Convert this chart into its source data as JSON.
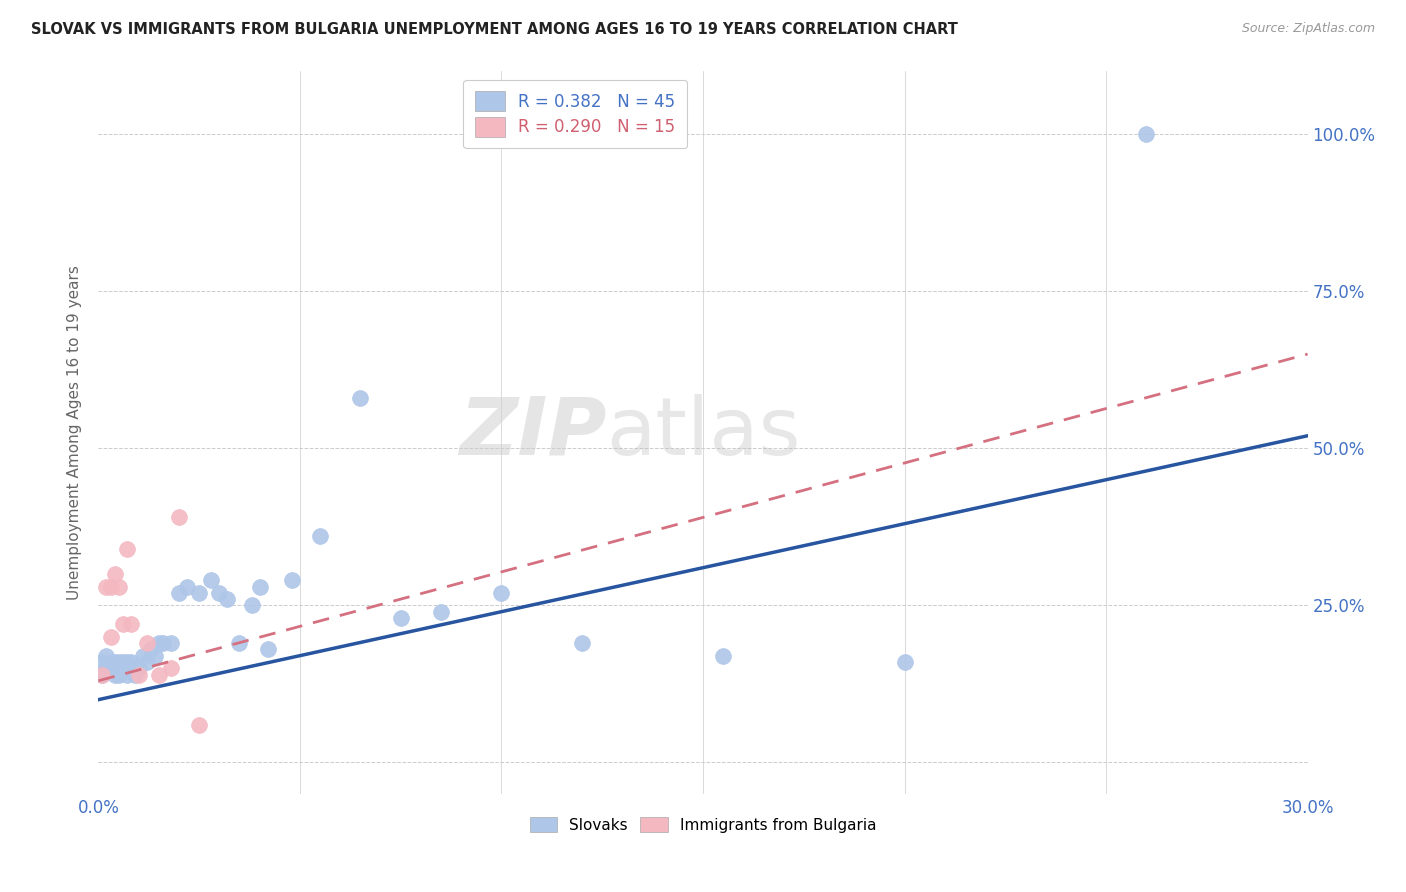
{
  "title": "SLOVAK VS IMMIGRANTS FROM BULGARIA UNEMPLOYMENT AMONG AGES 16 TO 19 YEARS CORRELATION CHART",
  "source": "Source: ZipAtlas.com",
  "ylabel": "Unemployment Among Ages 16 to 19 years",
  "xlim": [
    0.0,
    0.3
  ],
  "ylim": [
    -0.05,
    1.1
  ],
  "xticks": [
    0.0,
    0.05,
    0.1,
    0.15,
    0.2,
    0.25,
    0.3
  ],
  "xticklabels": [
    "0.0%",
    "",
    "",
    "",
    "",
    "",
    "30.0%"
  ],
  "yticks": [
    0.0,
    0.25,
    0.5,
    0.75,
    1.0
  ],
  "yticklabels": [
    "",
    "25.0%",
    "50.0%",
    "75.0%",
    "100.0%"
  ],
  "legend_entries": [
    {
      "label": "R = 0.382   N = 45",
      "color": "#aec6e8"
    },
    {
      "label": "R = 0.290   N = 15",
      "color": "#f4b8c1"
    }
  ],
  "bottom_legend": [
    "Slovaks",
    "Immigrants from Bulgaria"
  ],
  "slovak_color": "#aec6e8",
  "bulgaria_color": "#f4b8c1",
  "slovak_line_color": "#2855a0",
  "bulgaria_line_color": "#d47080",
  "watermark": "ZIPatlas",
  "slovak_x": [
    0.001,
    0.001,
    0.002,
    0.002,
    0.003,
    0.003,
    0.004,
    0.004,
    0.005,
    0.005,
    0.006,
    0.006,
    0.007,
    0.007,
    0.008,
    0.008,
    0.009,
    0.01,
    0.011,
    0.012,
    0.013,
    0.014,
    0.015,
    0.016,
    0.018,
    0.02,
    0.022,
    0.025,
    0.028,
    0.03,
    0.032,
    0.035,
    0.038,
    0.04,
    0.042,
    0.048,
    0.055,
    0.065,
    0.075,
    0.085,
    0.1,
    0.12,
    0.155,
    0.2,
    0.26
  ],
  "slovak_y": [
    0.14,
    0.16,
    0.15,
    0.17,
    0.15,
    0.16,
    0.14,
    0.16,
    0.14,
    0.16,
    0.15,
    0.16,
    0.14,
    0.16,
    0.15,
    0.16,
    0.14,
    0.15,
    0.17,
    0.16,
    0.18,
    0.17,
    0.19,
    0.19,
    0.19,
    0.27,
    0.28,
    0.27,
    0.29,
    0.27,
    0.26,
    0.19,
    0.25,
    0.28,
    0.18,
    0.29,
    0.36,
    0.58,
    0.23,
    0.24,
    0.27,
    0.19,
    0.17,
    0.16,
    1.0
  ],
  "bulgaria_x": [
    0.001,
    0.002,
    0.003,
    0.003,
    0.004,
    0.005,
    0.006,
    0.007,
    0.008,
    0.01,
    0.012,
    0.015,
    0.018,
    0.02,
    0.025
  ],
  "bulgaria_y": [
    0.14,
    0.28,
    0.2,
    0.28,
    0.3,
    0.28,
    0.22,
    0.34,
    0.22,
    0.14,
    0.19,
    0.14,
    0.15,
    0.39,
    0.06
  ],
  "slovak_trend": [
    0.1,
    0.52
  ],
  "bulgaria_trend": [
    0.13,
    0.65
  ],
  "trend_x": [
    0.0,
    0.3
  ]
}
